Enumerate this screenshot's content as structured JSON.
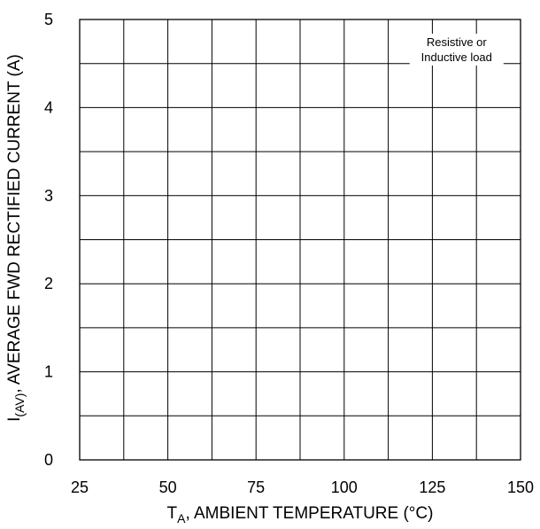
{
  "chart_data": {
    "type": "line",
    "title": "",
    "xlabel": {
      "main": "T",
      "sub": "A",
      "rest": ", AMBIENT TEMPERATURE (°C)"
    },
    "ylabel": {
      "main": "I",
      "sub": "(AV)",
      "rest": ", AVERAGE FWD RECTIFIED CURRENT (A)"
    },
    "xlim": [
      25,
      150
    ],
    "ylim": [
      0,
      5
    ],
    "x_ticks": [
      25,
      50,
      75,
      100,
      125,
      150
    ],
    "y_ticks": [
      0,
      1,
      2,
      3,
      4,
      5
    ],
    "x_grid_divisions": 10,
    "y_grid_divisions": 10,
    "grid": true,
    "series": [],
    "annotations": [
      {
        "lines": [
          "Resistive or",
          "Inductive load"
        ],
        "position": "top-right"
      }
    ]
  }
}
